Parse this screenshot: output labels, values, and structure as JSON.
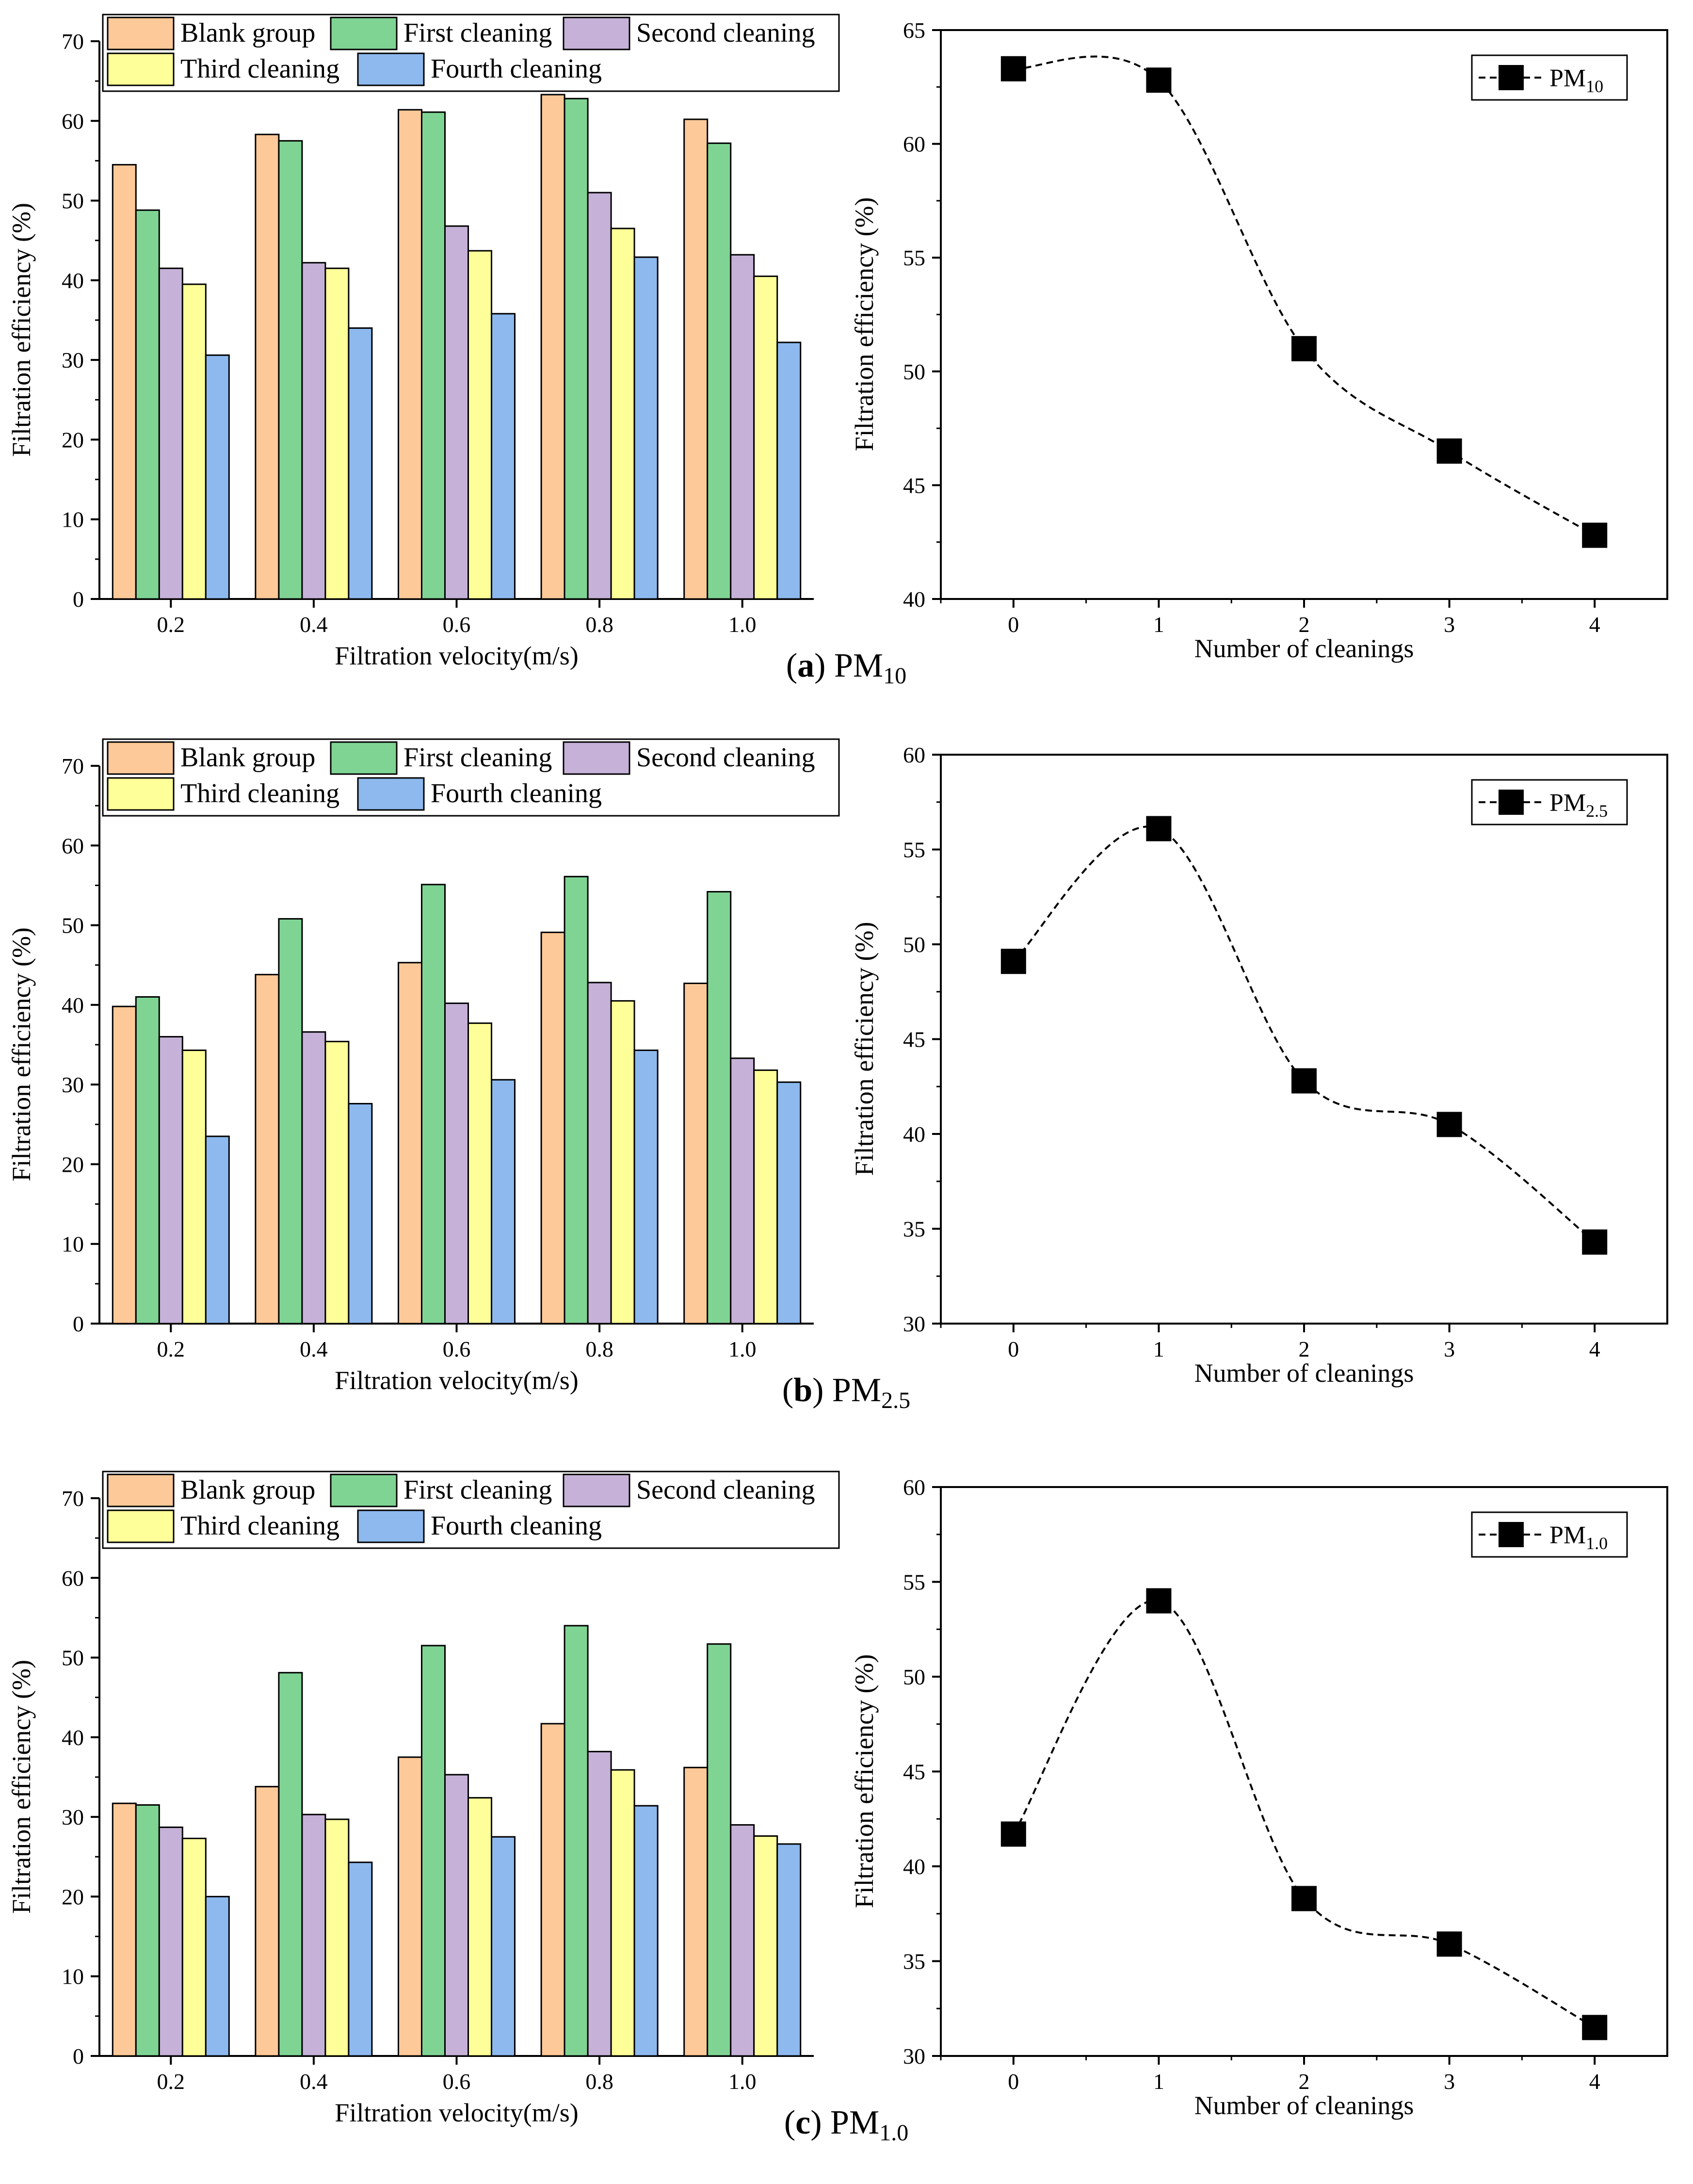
{
  "colors": {
    "blank": "#FDC998",
    "first": "#7FD494",
    "second": "#C6B2D8",
    "third": "#FFFF99",
    "fourth": "#8DB9EE",
    "axis": "#000000",
    "line": "#000000"
  },
  "panels": [
    {
      "caption": {
        "letter": "a",
        "text": "PM",
        "sub": "10"
      },
      "bar_chart": {
        "type": "bar",
        "xlabel": "Filtration velocity(m/s)",
        "ylabel": "Filtration efficiency (%)",
        "ylim": [
          0,
          70
        ],
        "yticks": [
          0,
          10,
          20,
          30,
          40,
          50,
          60,
          70
        ],
        "categories": [
          "0.2",
          "0.4",
          "0.6",
          "0.8",
          "1.0"
        ],
        "legend_position": "top-left",
        "series": [
          {
            "name": "Blank group",
            "color_key": "blank",
            "values": [
              54.5,
              58.3,
              61.4,
              63.3,
              60.2
            ]
          },
          {
            "name": "First cleaning",
            "color_key": "first",
            "values": [
              48.8,
              57.5,
              61.1,
              62.8,
              57.2
            ]
          },
          {
            "name": "Second cleaning",
            "color_key": "second",
            "values": [
              41.5,
              42.2,
              46.8,
              51.0,
              43.2
            ]
          },
          {
            "name": "Third cleaning",
            "color_key": "third",
            "values": [
              39.5,
              41.5,
              43.7,
              46.5,
              40.5
            ]
          },
          {
            "name": "Fourth cleaning",
            "color_key": "fourth",
            "values": [
              30.6,
              34.0,
              35.8,
              42.9,
              32.2
            ]
          }
        ]
      },
      "line_chart": {
        "type": "line",
        "xlabel": "Number of cleanings",
        "ylabel": "Filtration efficiency (%)",
        "ylim": [
          40,
          65
        ],
        "yticks": [
          40,
          45,
          50,
          55,
          60,
          65
        ],
        "xlim": [
          -0.5,
          4.5
        ],
        "xticks": [
          0,
          1,
          2,
          3,
          4
        ],
        "x": [
          0,
          1,
          2,
          3,
          4
        ],
        "y": [
          63.3,
          62.8,
          51.0,
          46.5,
          42.8
        ],
        "legend": {
          "text": "PM",
          "sub": "10"
        },
        "legend_position": "top-right"
      }
    },
    {
      "caption": {
        "letter": "b",
        "text": "PM",
        "sub": "2.5"
      },
      "bar_chart": {
        "type": "bar",
        "xlabel": "Filtration velocity(m/s)",
        "ylabel": "Filtration efficiency (%)",
        "ylim": [
          0,
          70
        ],
        "yticks": [
          0,
          10,
          20,
          30,
          40,
          50,
          60,
          70
        ],
        "categories": [
          "0.2",
          "0.4",
          "0.6",
          "0.8",
          "1.0"
        ],
        "legend_position": "top-left",
        "series": [
          {
            "name": "Blank group",
            "color_key": "blank",
            "values": [
              39.8,
              43.8,
              45.3,
              49.1,
              42.7
            ]
          },
          {
            "name": "First cleaning",
            "color_key": "first",
            "values": [
              41.0,
              50.8,
              55.1,
              56.1,
              54.2
            ]
          },
          {
            "name": "Second cleaning",
            "color_key": "second",
            "values": [
              36.0,
              36.6,
              40.2,
              42.8,
              33.3
            ]
          },
          {
            "name": "Third cleaning",
            "color_key": "third",
            "values": [
              34.3,
              35.4,
              37.7,
              40.5,
              31.8
            ]
          },
          {
            "name": "Fourth cleaning",
            "color_key": "fourth",
            "values": [
              23.5,
              27.6,
              30.6,
              34.3,
              30.3
            ]
          }
        ]
      },
      "line_chart": {
        "type": "line",
        "xlabel": "Number of cleanings",
        "ylabel": "Filtration efficiency (%)",
        "ylim": [
          30,
          60
        ],
        "yticks": [
          30,
          35,
          40,
          45,
          50,
          55,
          60
        ],
        "xlim": [
          -0.5,
          4.5
        ],
        "xticks": [
          0,
          1,
          2,
          3,
          4
        ],
        "x": [
          0,
          1,
          2,
          3,
          4
        ],
        "y": [
          49.1,
          56.1,
          42.8,
          40.5,
          34.3
        ],
        "legend": {
          "text": "PM",
          "sub": "2.5"
        },
        "legend_position": "top-right"
      }
    },
    {
      "caption": {
        "letter": "c",
        "text": "PM",
        "sub": "1.0"
      },
      "bar_chart": {
        "type": "bar",
        "xlabel": "Filtration velocity(m/s)",
        "ylabel": "Filtration efficiency (%)",
        "ylim": [
          0,
          70
        ],
        "yticks": [
          0,
          10,
          20,
          30,
          40,
          50,
          60,
          70
        ],
        "categories": [
          "0.2",
          "0.4",
          "0.6",
          "0.8",
          "1.0"
        ],
        "legend_position": "top-left",
        "series": [
          {
            "name": "Blank group",
            "color_key": "blank",
            "values": [
              31.7,
              33.8,
              37.5,
              41.7,
              36.2
            ]
          },
          {
            "name": "First cleaning",
            "color_key": "first",
            "values": [
              31.5,
              48.1,
              51.5,
              54.0,
              51.7
            ]
          },
          {
            "name": "Second cleaning",
            "color_key": "second",
            "values": [
              28.7,
              30.3,
              35.3,
              38.2,
              29.0
            ]
          },
          {
            "name": "Third cleaning",
            "color_key": "third",
            "values": [
              27.3,
              29.7,
              32.4,
              35.9,
              27.6
            ]
          },
          {
            "name": "Fourth cleaning",
            "color_key": "fourth",
            "values": [
              20.0,
              24.3,
              27.5,
              31.4,
              26.6
            ]
          }
        ]
      },
      "line_chart": {
        "type": "line",
        "xlabel": "Number of cleanings",
        "ylabel": "Filtration efficiency (%)",
        "ylim": [
          30,
          60
        ],
        "yticks": [
          30,
          35,
          40,
          45,
          50,
          55,
          60
        ],
        "xlim": [
          -0.5,
          4.5
        ],
        "xticks": [
          0,
          1,
          2,
          3,
          4
        ],
        "x": [
          0,
          1,
          2,
          3,
          4
        ],
        "y": [
          41.7,
          54.0,
          38.3,
          35.9,
          31.5
        ],
        "legend": {
          "text": "PM",
          "sub": "1.0"
        },
        "legend_position": "top-right"
      }
    }
  ]
}
